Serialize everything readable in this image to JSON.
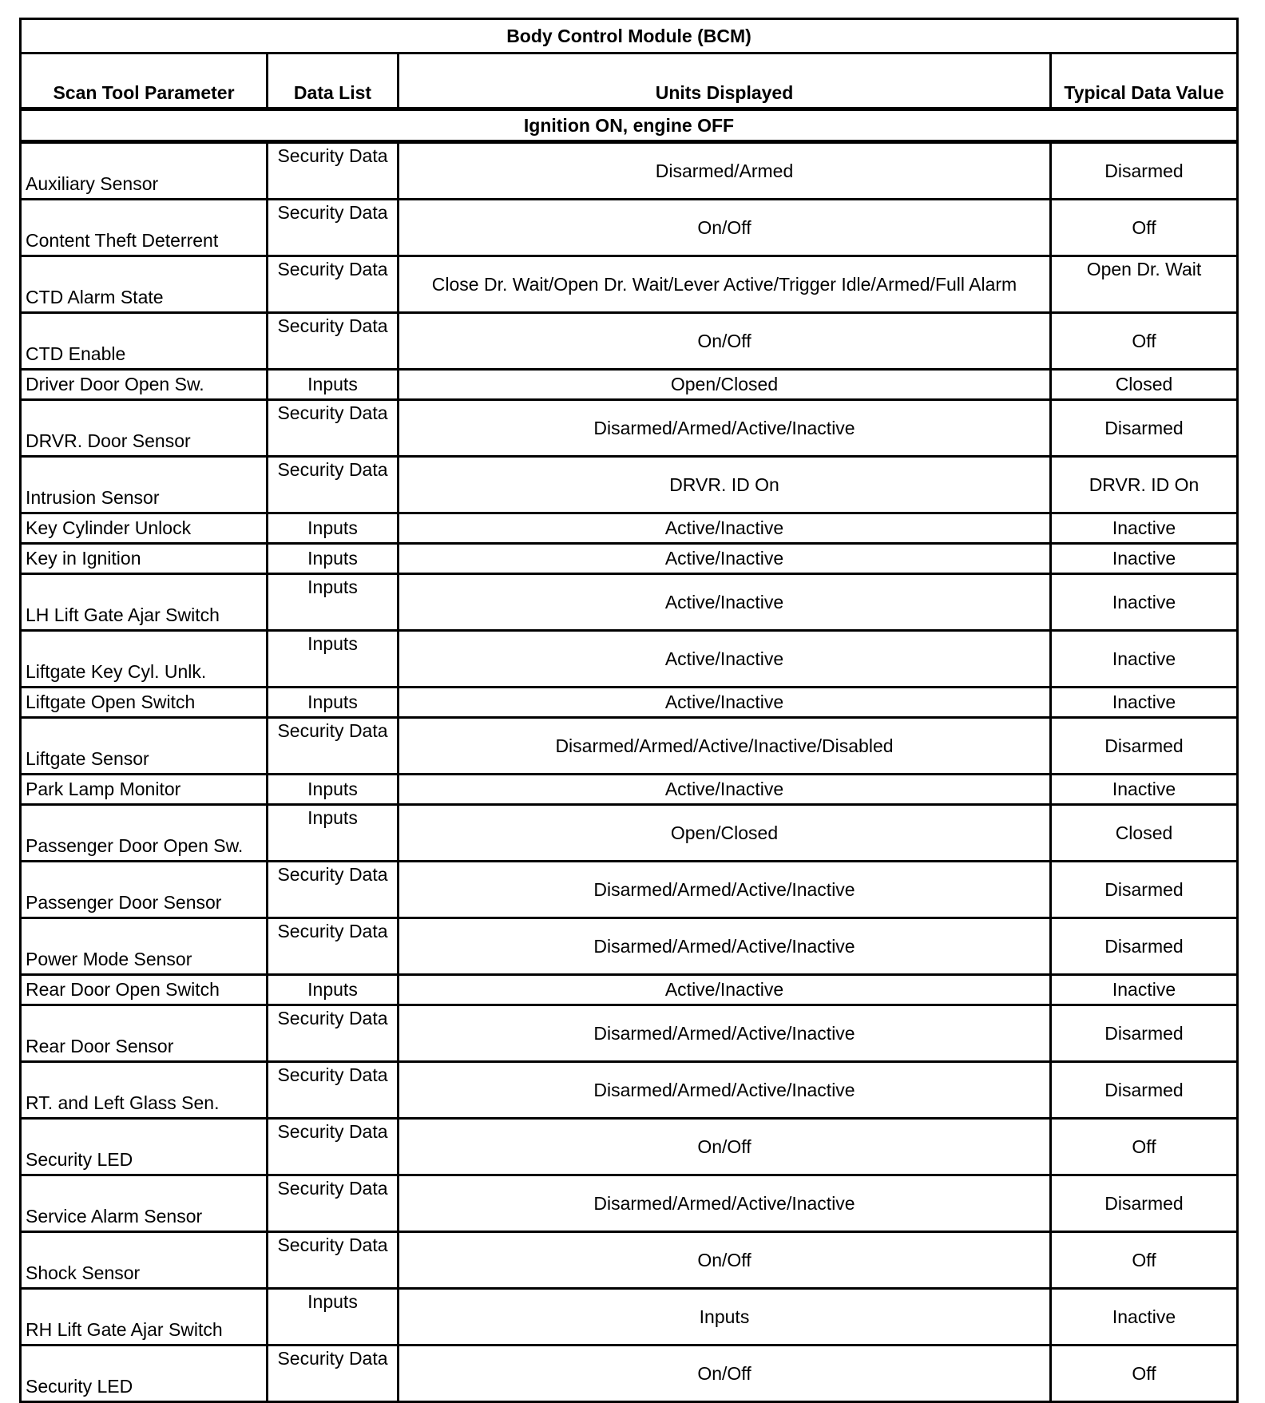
{
  "title": "Body Control Module (BCM)",
  "headers": [
    "Scan Tool Parameter",
    "Data List",
    "Units Displayed",
    "Typical Data Value"
  ],
  "section": "Ignition ON, engine OFF",
  "rows": [
    {
      "param": "Auxiliary Sensor",
      "list": "Security Data",
      "units": "Disarmed/Armed",
      "value": "Disarmed"
    },
    {
      "param": "Content Theft Deterrent",
      "list": "Security Data",
      "units": "On/Off",
      "value": "Off"
    },
    {
      "param": "CTD Alarm State",
      "list": "Security Data",
      "units": "Close Dr. Wait/Open Dr. Wait/Lever Active/Trigger Idle/Armed/Full Alarm",
      "value": "Open Dr. Wait"
    },
    {
      "param": "CTD Enable",
      "list": "Security Data",
      "units": "On/Off",
      "value": "Off"
    },
    {
      "param": "Driver Door Open Sw.",
      "list": "Inputs",
      "units": "Open/Closed",
      "value": "Closed"
    },
    {
      "param": "DRVR. Door Sensor",
      "list": "Security Data",
      "units": "Disarmed/Armed/Active/Inactive",
      "value": "Disarmed"
    },
    {
      "param": "Intrusion Sensor",
      "list": "Security Data",
      "units": "DRVR. ID On",
      "value": "DRVR. ID On"
    },
    {
      "param": "Key Cylinder Unlock",
      "list": "Inputs",
      "units": "Active/Inactive",
      "value": "Inactive"
    },
    {
      "param": "Key in Ignition",
      "list": "Inputs",
      "units": "Active/Inactive",
      "value": "Inactive"
    },
    {
      "param": "LH Lift Gate Ajar Switch",
      "list": "Inputs",
      "units": "Active/Inactive",
      "value": "Inactive"
    },
    {
      "param": "Liftgate Key Cyl. Unlk.",
      "list": "Inputs",
      "units": "Active/Inactive",
      "value": "Inactive"
    },
    {
      "param": "Liftgate Open Switch",
      "list": "Inputs",
      "units": "Active/Inactive",
      "value": "Inactive"
    },
    {
      "param": "Liftgate Sensor",
      "list": "Security Data",
      "units": "Disarmed/Armed/Active/Inactive/Disabled",
      "value": "Disarmed"
    },
    {
      "param": "Park Lamp Monitor",
      "list": "Inputs",
      "units": "Active/Inactive",
      "value": "Inactive"
    },
    {
      "param": "Passenger Door Open Sw.",
      "list": "Inputs",
      "units": "Open/Closed",
      "value": "Closed"
    },
    {
      "param": "Passenger Door Sensor",
      "list": "Security Data",
      "units": "Disarmed/Armed/Active/Inactive",
      "value": "Disarmed"
    },
    {
      "param": "Power Mode Sensor",
      "list": "Security Data",
      "units": "Disarmed/Armed/Active/Inactive",
      "value": "Disarmed"
    },
    {
      "param": "Rear Door Open Switch",
      "list": "Inputs",
      "units": "Active/Inactive",
      "value": "Inactive"
    },
    {
      "param": "Rear Door Sensor",
      "list": "Security Data",
      "units": "Disarmed/Armed/Active/Inactive",
      "value": "Disarmed"
    },
    {
      "param": "RT. and Left Glass Sen.",
      "list": "Security Data",
      "units": "Disarmed/Armed/Active/Inactive",
      "value": "Disarmed"
    },
    {
      "param": "Security LED",
      "list": "Security Data",
      "units": "On/Off",
      "value": "Off"
    },
    {
      "param": "Service Alarm Sensor",
      "list": "Security Data",
      "units": "Disarmed/Armed/Active/Inactive",
      "value": "Disarmed"
    },
    {
      "param": "Shock Sensor",
      "list": "Security Data",
      "units": "On/Off",
      "value": "Off"
    },
    {
      "param": "RH Lift Gate Ajar Switch",
      "list": "Inputs",
      "units": "Inputs",
      "value": "Inactive"
    },
    {
      "param": "Security LED",
      "list": "Security Data",
      "units": "On/Off",
      "value": "Off"
    }
  ]
}
